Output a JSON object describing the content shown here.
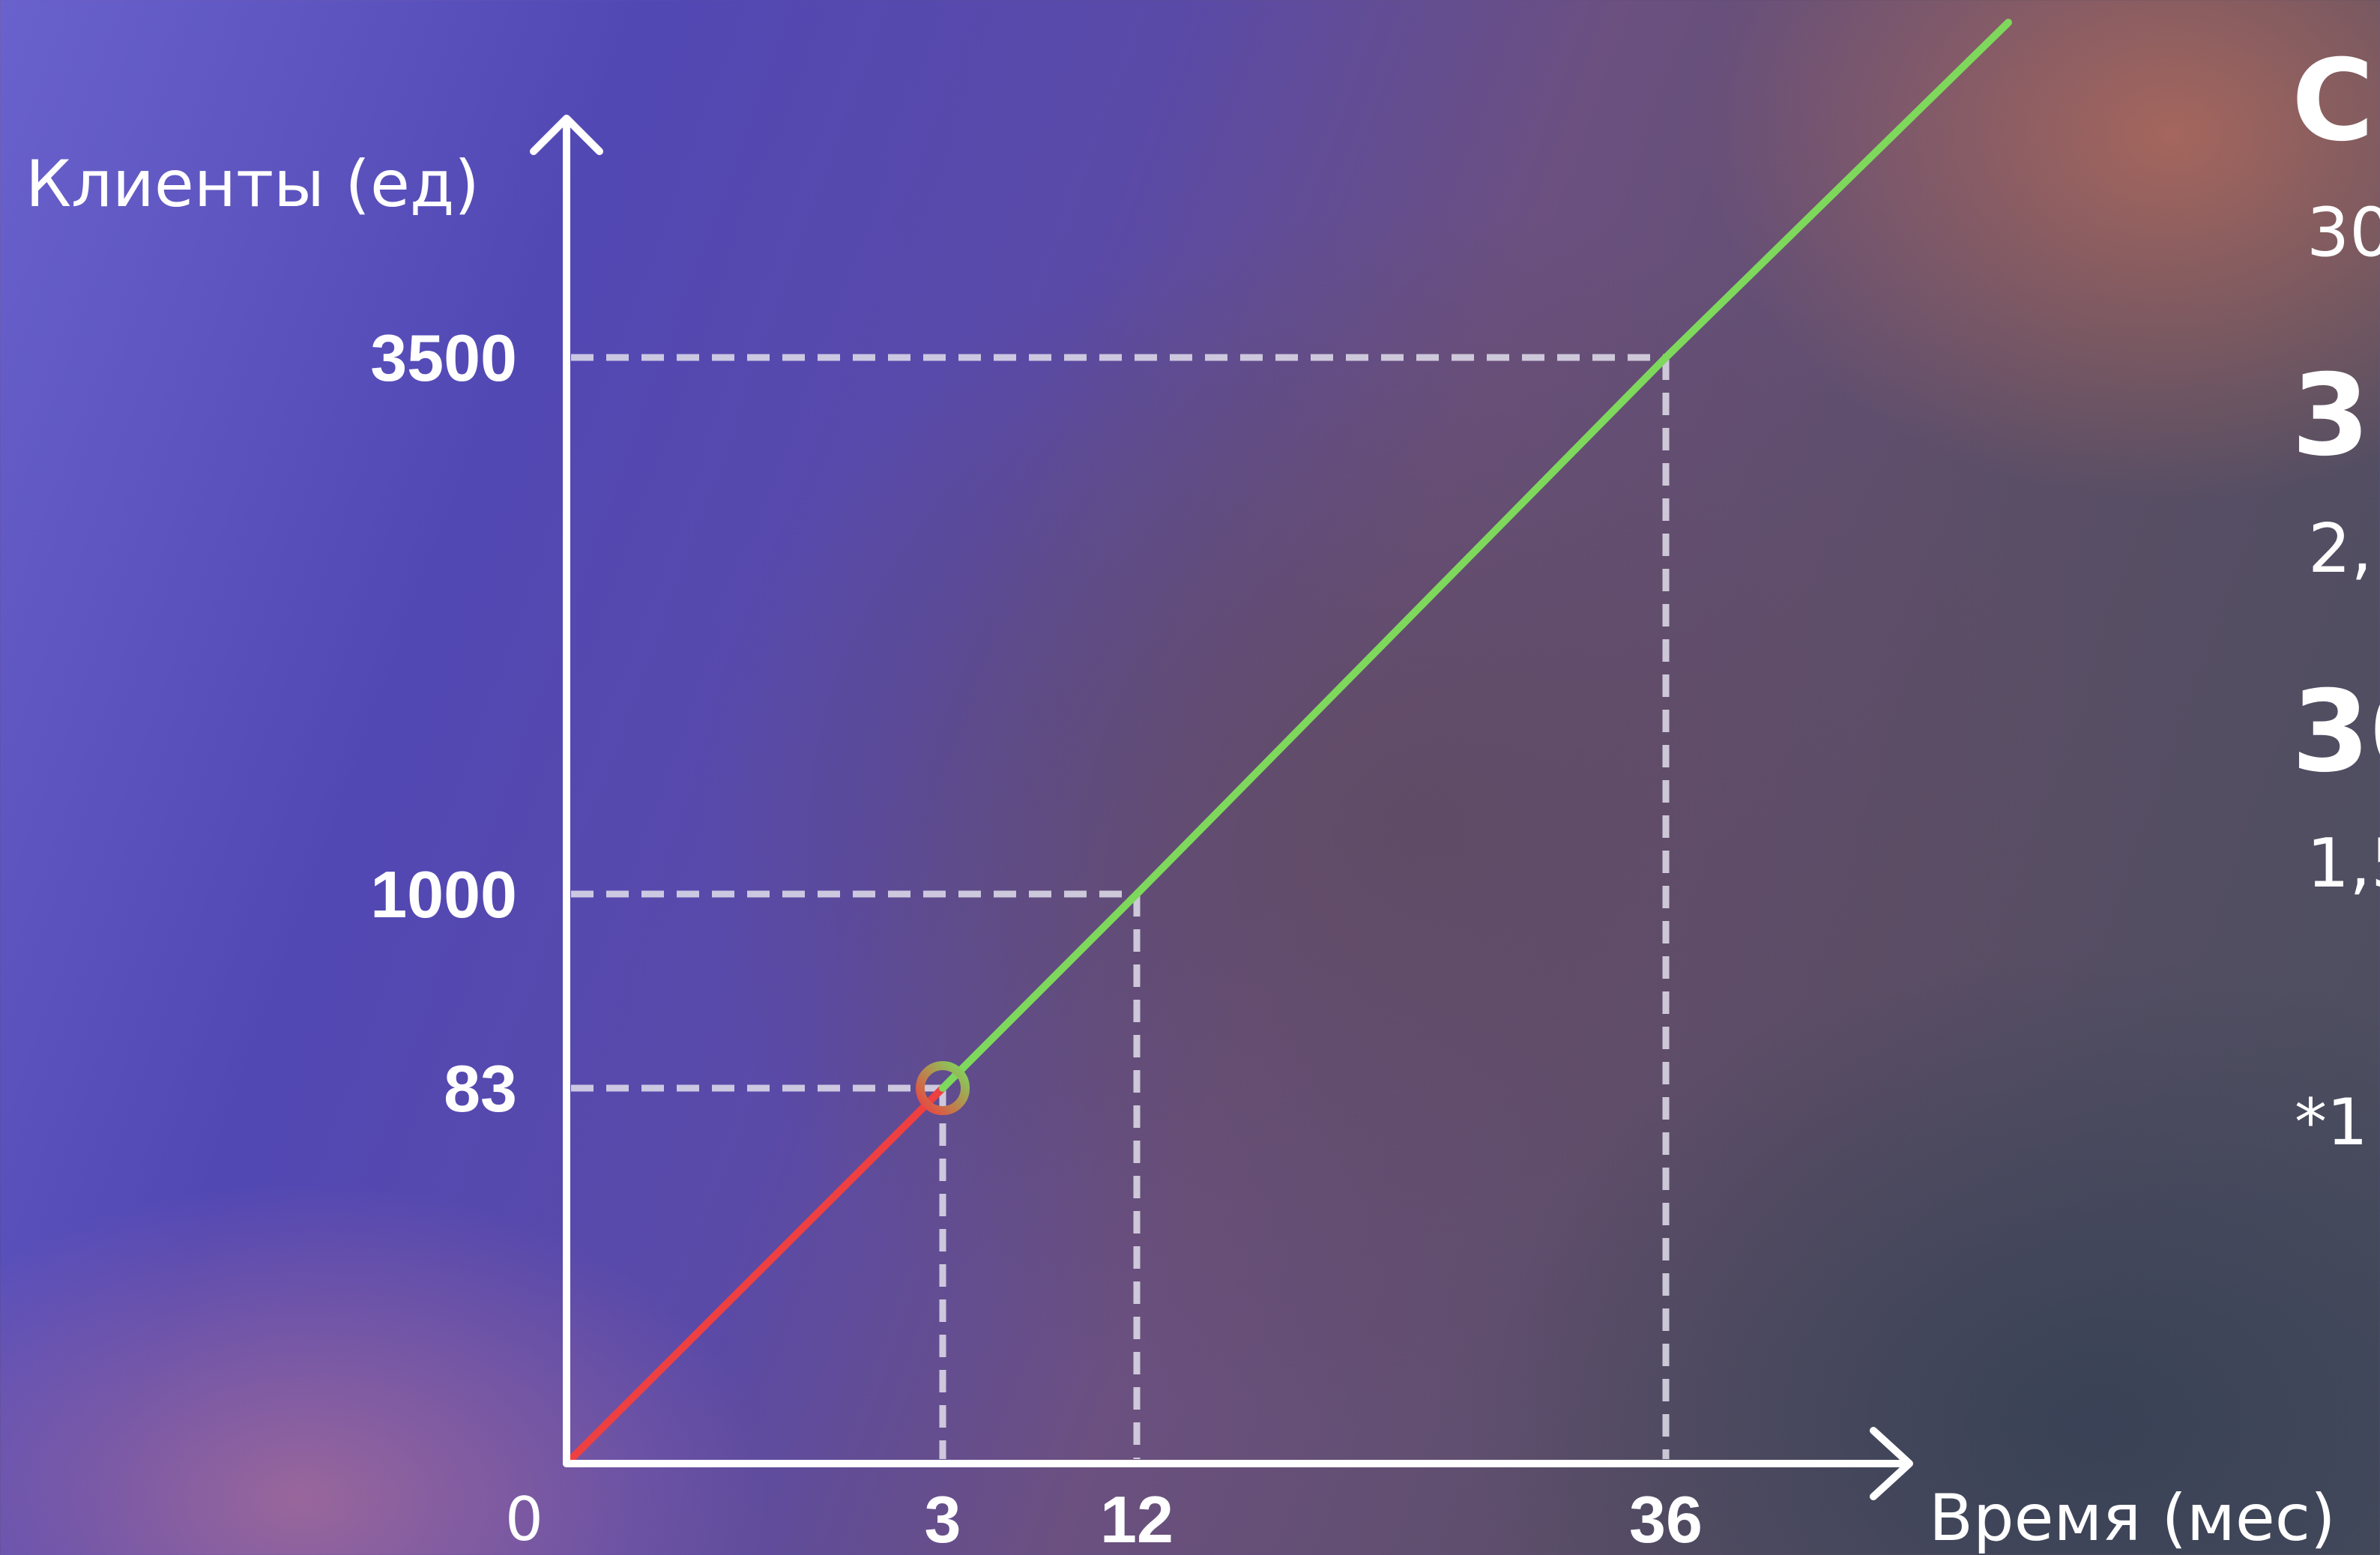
{
  "chart_data": {
    "type": "line",
    "xlabel": "Время (мес)",
    "ylabel": "Клиенты (ед)",
    "origin_label": "0",
    "x_ticks": [
      "3",
      "12",
      "36"
    ],
    "y_ticks": [
      "83",
      "1000",
      "3500"
    ],
    "series": [
      {
        "color": "#ee4040",
        "x": [
          0,
          3
        ],
        "y": [
          0,
          83
        ]
      },
      {
        "color": "#7ed85c",
        "x": [
          3,
          12,
          36,
          40
        ],
        "y": [
          83,
          1000,
          3500,
          4000
        ]
      }
    ],
    "marked_point": {
      "x": 3,
      "y": 83
    },
    "guides": [
      {
        "x": 3,
        "y": 83
      },
      {
        "x": 12,
        "y": 1000
      },
      {
        "x": 36,
        "y": 3500
      }
    ]
  },
  "side_panel": {
    "items": [
      "С",
      "30",
      "3",
      "2,",
      "30",
      "1,5",
      "*1"
    ]
  },
  "colors": {
    "axis": "#ffffff",
    "red_segment": "#ee4040",
    "green_segment": "#7ed85c",
    "guide": "#e1deeb"
  }
}
